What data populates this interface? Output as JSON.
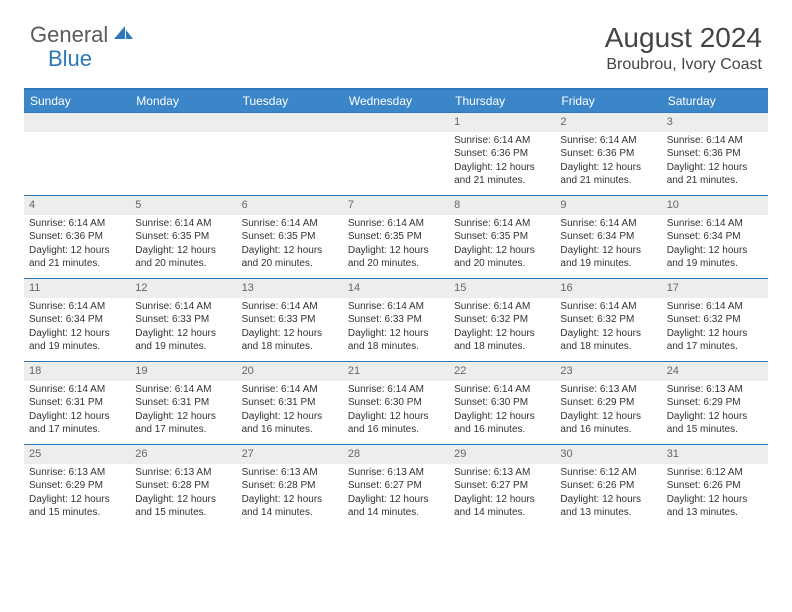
{
  "logo": {
    "general": "General",
    "blue": "Blue"
  },
  "title": "August 2024",
  "location": "Broubrou, Ivory Coast",
  "colors": {
    "header_bg": "#3a86c8",
    "border": "#2d78bb",
    "daynum_bg": "#eceded",
    "text": "#333333"
  },
  "weekdays": [
    "Sunday",
    "Monday",
    "Tuesday",
    "Wednesday",
    "Thursday",
    "Friday",
    "Saturday"
  ],
  "weeks": [
    [
      null,
      null,
      null,
      null,
      {
        "n": "1",
        "sr": "Sunrise: 6:14 AM",
        "ss": "Sunset: 6:36 PM",
        "dl": "Daylight: 12 hours and 21 minutes."
      },
      {
        "n": "2",
        "sr": "Sunrise: 6:14 AM",
        "ss": "Sunset: 6:36 PM",
        "dl": "Daylight: 12 hours and 21 minutes."
      },
      {
        "n": "3",
        "sr": "Sunrise: 6:14 AM",
        "ss": "Sunset: 6:36 PM",
        "dl": "Daylight: 12 hours and 21 minutes."
      }
    ],
    [
      {
        "n": "4",
        "sr": "Sunrise: 6:14 AM",
        "ss": "Sunset: 6:36 PM",
        "dl": "Daylight: 12 hours and 21 minutes."
      },
      {
        "n": "5",
        "sr": "Sunrise: 6:14 AM",
        "ss": "Sunset: 6:35 PM",
        "dl": "Daylight: 12 hours and 20 minutes."
      },
      {
        "n": "6",
        "sr": "Sunrise: 6:14 AM",
        "ss": "Sunset: 6:35 PM",
        "dl": "Daylight: 12 hours and 20 minutes."
      },
      {
        "n": "7",
        "sr": "Sunrise: 6:14 AM",
        "ss": "Sunset: 6:35 PM",
        "dl": "Daylight: 12 hours and 20 minutes."
      },
      {
        "n": "8",
        "sr": "Sunrise: 6:14 AM",
        "ss": "Sunset: 6:35 PM",
        "dl": "Daylight: 12 hours and 20 minutes."
      },
      {
        "n": "9",
        "sr": "Sunrise: 6:14 AM",
        "ss": "Sunset: 6:34 PM",
        "dl": "Daylight: 12 hours and 19 minutes."
      },
      {
        "n": "10",
        "sr": "Sunrise: 6:14 AM",
        "ss": "Sunset: 6:34 PM",
        "dl": "Daylight: 12 hours and 19 minutes."
      }
    ],
    [
      {
        "n": "11",
        "sr": "Sunrise: 6:14 AM",
        "ss": "Sunset: 6:34 PM",
        "dl": "Daylight: 12 hours and 19 minutes."
      },
      {
        "n": "12",
        "sr": "Sunrise: 6:14 AM",
        "ss": "Sunset: 6:33 PM",
        "dl": "Daylight: 12 hours and 19 minutes."
      },
      {
        "n": "13",
        "sr": "Sunrise: 6:14 AM",
        "ss": "Sunset: 6:33 PM",
        "dl": "Daylight: 12 hours and 18 minutes."
      },
      {
        "n": "14",
        "sr": "Sunrise: 6:14 AM",
        "ss": "Sunset: 6:33 PM",
        "dl": "Daylight: 12 hours and 18 minutes."
      },
      {
        "n": "15",
        "sr": "Sunrise: 6:14 AM",
        "ss": "Sunset: 6:32 PM",
        "dl": "Daylight: 12 hours and 18 minutes."
      },
      {
        "n": "16",
        "sr": "Sunrise: 6:14 AM",
        "ss": "Sunset: 6:32 PM",
        "dl": "Daylight: 12 hours and 18 minutes."
      },
      {
        "n": "17",
        "sr": "Sunrise: 6:14 AM",
        "ss": "Sunset: 6:32 PM",
        "dl": "Daylight: 12 hours and 17 minutes."
      }
    ],
    [
      {
        "n": "18",
        "sr": "Sunrise: 6:14 AM",
        "ss": "Sunset: 6:31 PM",
        "dl": "Daylight: 12 hours and 17 minutes."
      },
      {
        "n": "19",
        "sr": "Sunrise: 6:14 AM",
        "ss": "Sunset: 6:31 PM",
        "dl": "Daylight: 12 hours and 17 minutes."
      },
      {
        "n": "20",
        "sr": "Sunrise: 6:14 AM",
        "ss": "Sunset: 6:31 PM",
        "dl": "Daylight: 12 hours and 16 minutes."
      },
      {
        "n": "21",
        "sr": "Sunrise: 6:14 AM",
        "ss": "Sunset: 6:30 PM",
        "dl": "Daylight: 12 hours and 16 minutes."
      },
      {
        "n": "22",
        "sr": "Sunrise: 6:14 AM",
        "ss": "Sunset: 6:30 PM",
        "dl": "Daylight: 12 hours and 16 minutes."
      },
      {
        "n": "23",
        "sr": "Sunrise: 6:13 AM",
        "ss": "Sunset: 6:29 PM",
        "dl": "Daylight: 12 hours and 16 minutes."
      },
      {
        "n": "24",
        "sr": "Sunrise: 6:13 AM",
        "ss": "Sunset: 6:29 PM",
        "dl": "Daylight: 12 hours and 15 minutes."
      }
    ],
    [
      {
        "n": "25",
        "sr": "Sunrise: 6:13 AM",
        "ss": "Sunset: 6:29 PM",
        "dl": "Daylight: 12 hours and 15 minutes."
      },
      {
        "n": "26",
        "sr": "Sunrise: 6:13 AM",
        "ss": "Sunset: 6:28 PM",
        "dl": "Daylight: 12 hours and 15 minutes."
      },
      {
        "n": "27",
        "sr": "Sunrise: 6:13 AM",
        "ss": "Sunset: 6:28 PM",
        "dl": "Daylight: 12 hours and 14 minutes."
      },
      {
        "n": "28",
        "sr": "Sunrise: 6:13 AM",
        "ss": "Sunset: 6:27 PM",
        "dl": "Daylight: 12 hours and 14 minutes."
      },
      {
        "n": "29",
        "sr": "Sunrise: 6:13 AM",
        "ss": "Sunset: 6:27 PM",
        "dl": "Daylight: 12 hours and 14 minutes."
      },
      {
        "n": "30",
        "sr": "Sunrise: 6:12 AM",
        "ss": "Sunset: 6:26 PM",
        "dl": "Daylight: 12 hours and 13 minutes."
      },
      {
        "n": "31",
        "sr": "Sunrise: 6:12 AM",
        "ss": "Sunset: 6:26 PM",
        "dl": "Daylight: 12 hours and 13 minutes."
      }
    ]
  ]
}
